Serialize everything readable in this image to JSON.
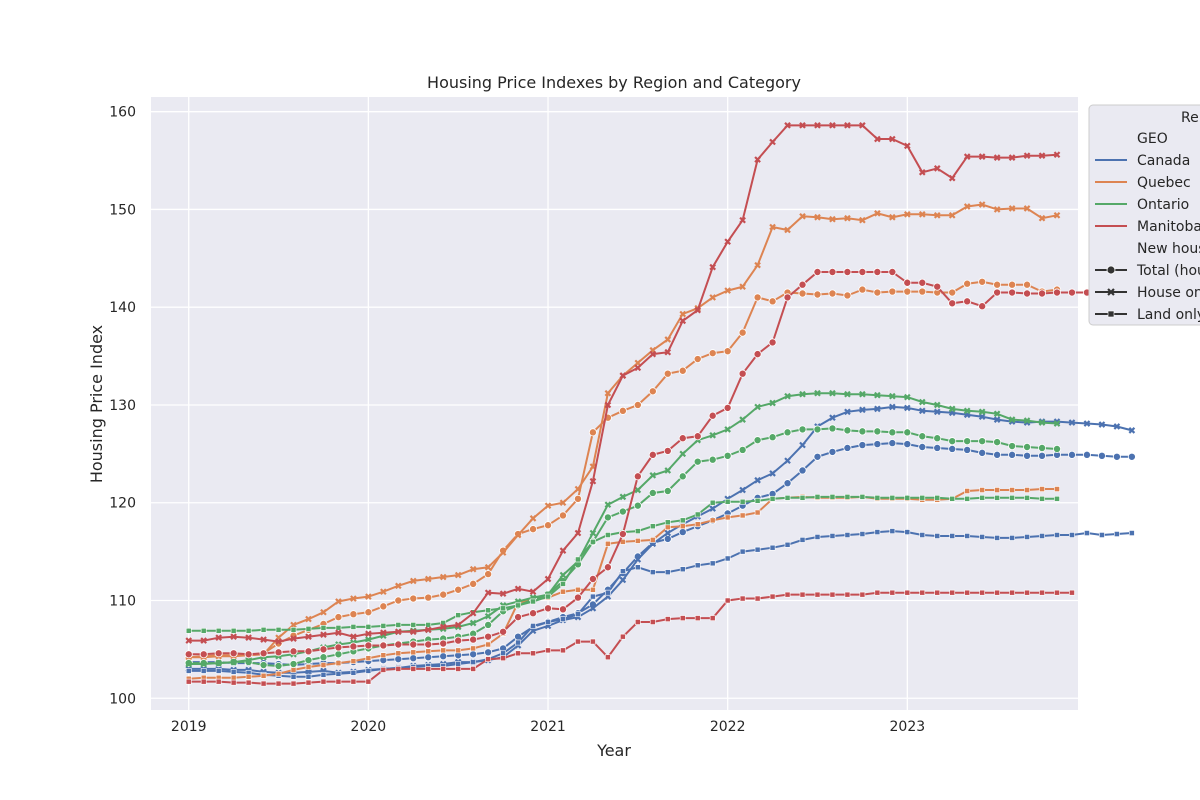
{
  "chart_data": {
    "type": "line",
    "title": "Housing Price Indexes by Region and Category",
    "xlabel": "Year",
    "ylabel": "Housing Price Index",
    "xlim": [
      2018.79,
      2023.95
    ],
    "ylim": [
      98.8,
      161.5
    ],
    "x_ticks": [
      2019,
      2020,
      2021,
      2022,
      2023
    ],
    "x_tick_labels": [
      "2019",
      "2020",
      "2021",
      "2022",
      "2023"
    ],
    "y_ticks": [
      100,
      110,
      120,
      130,
      140,
      150,
      160
    ],
    "y_tick_labels": [
      "100",
      "110",
      "120",
      "130",
      "140",
      "150",
      "160"
    ],
    "grid": true,
    "legend": {
      "position": "upper-right-outside",
      "title": "Re",
      "geo_header": "GEO",
      "type_header": "New hous",
      "geo_entries": [
        {
          "label": "Canada",
          "color": "#4c72b0"
        },
        {
          "label": "Quebec",
          "color": "#dd8452"
        },
        {
          "label": "Ontario",
          "color": "#55a868"
        },
        {
          "label": "Manitoba",
          "color": "#c44e52"
        }
      ],
      "type_entries": [
        {
          "label": "Total (hou",
          "marker": "circle"
        },
        {
          "label": "House on",
          "marker": "x"
        },
        {
          "label": "Land only",
          "marker": "square"
        }
      ]
    },
    "x_start": 2019.0,
    "x_step": 0.08333,
    "series": [
      {
        "geo": "Canada",
        "type": "Total",
        "color": "#4c72b0",
        "marker": "circle",
        "values": [
          103.7,
          103.7,
          103.7,
          103.6,
          103.6,
          103.6,
          103.5,
          103.4,
          103.5,
          103.6,
          103.6,
          103.7,
          103.8,
          103.9,
          104.0,
          104.1,
          104.2,
          104.3,
          104.4,
          104.5,
          104.7,
          105.1,
          106.3,
          107.3,
          107.8,
          108.3,
          108.7,
          109.6,
          111.1,
          112.8,
          114.5,
          115.9,
          116.3,
          117.0,
          117.6,
          118.2,
          118.9,
          119.7,
          120.5,
          120.9,
          122.0,
          123.3,
          124.7,
          125.2,
          125.6,
          125.9,
          126.0,
          126.1,
          126.0,
          125.7,
          125.6,
          125.5,
          125.4,
          125.1,
          124.9,
          124.9,
          124.8,
          124.8,
          124.9,
          124.9,
          124.9,
          124.8,
          124.7,
          124.7
        ]
      },
      {
        "geo": "Canada",
        "type": "House only",
        "color": "#4c72b0",
        "marker": "x",
        "values": [
          103.0,
          103.0,
          103.0,
          102.9,
          102.9,
          102.7,
          102.6,
          102.6,
          102.7,
          102.8,
          102.6,
          102.7,
          102.9,
          103.0,
          103.1,
          103.3,
          103.4,
          103.5,
          103.7,
          103.7,
          103.9,
          104.2,
          105.4,
          106.9,
          107.4,
          108.0,
          108.3,
          109.2,
          110.4,
          112.1,
          114.2,
          115.8,
          116.9,
          117.8,
          118.6,
          119.4,
          120.4,
          121.3,
          122.3,
          123.0,
          124.3,
          125.9,
          127.8,
          128.7,
          129.3,
          129.5,
          129.6,
          129.8,
          129.7,
          129.4,
          129.3,
          129.2,
          129.0,
          128.8,
          128.5,
          128.3,
          128.2,
          128.3,
          128.3,
          128.2,
          128.1,
          128.0,
          127.8,
          127.4
        ]
      },
      {
        "geo": "Canada",
        "type": "Land only",
        "color": "#4c72b0",
        "marker": "square",
        "values": [
          102.8,
          102.8,
          102.8,
          102.7,
          102.6,
          102.4,
          102.3,
          102.2,
          102.2,
          102.4,
          102.5,
          102.6,
          102.8,
          103.0,
          103.1,
          103.2,
          103.3,
          103.3,
          103.5,
          103.7,
          104.0,
          104.6,
          105.7,
          107.4,
          107.8,
          108.1,
          108.6,
          110.4,
          110.8,
          113.0,
          113.4,
          112.9,
          112.9,
          113.2,
          113.6,
          113.8,
          114.3,
          115.0,
          115.2,
          115.4,
          115.7,
          116.2,
          116.5,
          116.6,
          116.7,
          116.8,
          117.0,
          117.1,
          117.0,
          116.7,
          116.6,
          116.6,
          116.6,
          116.5,
          116.4,
          116.4,
          116.5,
          116.6,
          116.7,
          116.7,
          116.9,
          116.7,
          116.8,
          116.9
        ]
      },
      {
        "geo": "Quebec",
        "type": "Total",
        "color": "#dd8452",
        "marker": "circle",
        "values": [
          104.2,
          104.3,
          104.4,
          104.4,
          104.5,
          104.6,
          105.6,
          106.4,
          107.0,
          107.6,
          108.3,
          108.6,
          108.8,
          109.4,
          110.0,
          110.2,
          110.3,
          110.6,
          111.1,
          111.7,
          112.7,
          115.1,
          116.8,
          117.3,
          117.7,
          118.7,
          120.4,
          127.2,
          128.7,
          129.4,
          130.0,
          131.4,
          133.2,
          133.5,
          134.7,
          135.3,
          135.5,
          137.4,
          141.0,
          140.6,
          141.5,
          141.4,
          141.3,
          141.4,
          141.2,
          141.8,
          141.5,
          141.6,
          141.6,
          141.6,
          141.5,
          141.5,
          142.4,
          142.6,
          142.3,
          142.3,
          142.3,
          141.6,
          141.8
        ]
      },
      {
        "geo": "Quebec",
        "type": "House only",
        "color": "#dd8452",
        "marker": "x",
        "values": [
          104.2,
          104.2,
          104.3,
          104.3,
          104.4,
          104.5,
          106.2,
          107.5,
          108.1,
          108.8,
          109.9,
          110.2,
          110.4,
          110.9,
          111.5,
          112.0,
          112.2,
          112.4,
          112.6,
          113.2,
          113.4,
          114.9,
          116.7,
          118.4,
          119.7,
          120.0,
          121.4,
          123.7,
          131.2,
          133.0,
          134.3,
          135.6,
          136.7,
          139.3,
          139.9,
          141.0,
          141.7,
          142.1,
          144.3,
          148.2,
          147.9,
          149.3,
          149.2,
          149.0,
          149.1,
          148.9,
          149.6,
          149.2,
          149.5,
          149.5,
          149.4,
          149.4,
          150.3,
          150.5,
          150.0,
          150.1,
          150.1,
          149.1,
          149.4
        ]
      },
      {
        "geo": "Quebec",
        "type": "Land only",
        "color": "#dd8452",
        "marker": "square",
        "values": [
          102.0,
          102.1,
          102.1,
          102.1,
          102.2,
          102.3,
          102.5,
          102.9,
          103.2,
          103.4,
          103.6,
          103.8,
          104.1,
          104.4,
          104.6,
          104.7,
          104.8,
          104.9,
          104.9,
          105.1,
          105.5,
          106.6,
          109.8,
          110.1,
          110.3,
          110.9,
          111.1,
          111.1,
          115.8,
          116.0,
          116.1,
          116.2,
          117.5,
          117.6,
          117.8,
          118.2,
          118.5,
          118.7,
          119.0,
          120.4,
          120.5,
          120.6,
          120.5,
          120.5,
          120.5,
          120.6,
          120.4,
          120.4,
          120.4,
          120.3,
          120.3,
          120.4,
          121.2,
          121.3,
          121.3,
          121.3,
          121.3,
          121.4,
          121.4
        ]
      },
      {
        "geo": "Ontario",
        "type": "Total",
        "color": "#55a868",
        "marker": "circle",
        "values": [
          103.6,
          103.6,
          103.6,
          103.7,
          103.7,
          103.4,
          103.3,
          103.5,
          103.9,
          104.2,
          104.5,
          104.8,
          105.1,
          105.4,
          105.6,
          105.8,
          106.0,
          106.1,
          106.3,
          106.6,
          107.5,
          108.9,
          109.5,
          110.1,
          110.6,
          112.0,
          113.7,
          116.0,
          118.5,
          119.1,
          119.7,
          121.0,
          121.2,
          122.7,
          124.2,
          124.4,
          124.8,
          125.4,
          126.4,
          126.7,
          127.2,
          127.5,
          127.5,
          127.6,
          127.4,
          127.3,
          127.3,
          127.2,
          127.2,
          126.8,
          126.6,
          126.3,
          126.3,
          126.3,
          126.2,
          125.8,
          125.7,
          125.6,
          125.5
        ]
      },
      {
        "geo": "Ontario",
        "type": "House only",
        "color": "#55a868",
        "marker": "x",
        "values": [
          103.5,
          103.5,
          103.6,
          103.7,
          103.9,
          104.2,
          104.3,
          104.5,
          104.8,
          105.2,
          105.5,
          105.7,
          106.0,
          106.4,
          106.8,
          106.9,
          107.0,
          107.1,
          107.3,
          107.7,
          108.4,
          109.5,
          109.9,
          110.3,
          110.6,
          112.6,
          114.0,
          116.9,
          119.8,
          120.6,
          121.3,
          122.8,
          123.3,
          125.0,
          126.4,
          126.9,
          127.5,
          128.5,
          129.8,
          130.2,
          130.9,
          131.1,
          131.2,
          131.2,
          131.1,
          131.1,
          131.0,
          130.9,
          130.8,
          130.3,
          130.0,
          129.6,
          129.4,
          129.3,
          129.1,
          128.5,
          128.4,
          128.2,
          128.1
        ]
      },
      {
        "geo": "Ontario",
        "type": "Land only",
        "color": "#55a868",
        "marker": "square",
        "values": [
          106.9,
          106.9,
          106.9,
          106.9,
          106.9,
          107.0,
          107.0,
          107.0,
          107.1,
          107.2,
          107.2,
          107.3,
          107.3,
          107.4,
          107.5,
          107.5,
          107.5,
          107.7,
          108.5,
          108.8,
          109.0,
          109.2,
          109.5,
          109.9,
          110.4,
          111.7,
          114.2,
          116.0,
          116.7,
          117.0,
          117.1,
          117.6,
          118.0,
          118.2,
          118.8,
          120.0,
          120.1,
          120.1,
          120.2,
          120.4,
          120.5,
          120.5,
          120.6,
          120.6,
          120.6,
          120.6,
          120.5,
          120.5,
          120.5,
          120.5,
          120.5,
          120.4,
          120.4,
          120.5,
          120.5,
          120.5,
          120.5,
          120.4,
          120.4
        ]
      },
      {
        "geo": "Manitoba",
        "type": "Total",
        "color": "#c44e52",
        "marker": "circle",
        "values": [
          104.5,
          104.5,
          104.6,
          104.6,
          104.5,
          104.6,
          104.7,
          104.8,
          104.8,
          105.0,
          105.2,
          105.3,
          105.4,
          105.4,
          105.5,
          105.5,
          105.5,
          105.6,
          105.9,
          106.0,
          106.3,
          106.8,
          108.3,
          108.7,
          109.2,
          109.1,
          110.3,
          112.2,
          113.4,
          116.8,
          122.7,
          124.9,
          125.3,
          126.6,
          126.8,
          128.9,
          129.7,
          133.2,
          135.2,
          136.4,
          141.0,
          142.3,
          143.6,
          143.6,
          143.6,
          143.6,
          143.6,
          143.6,
          142.5,
          142.5,
          142.1,
          140.4,
          140.6,
          140.1,
          141.5,
          141.5,
          141.4,
          141.4,
          141.5,
          141.5,
          141.5
        ]
      },
      {
        "geo": "Manitoba",
        "type": "House only",
        "color": "#c44e52",
        "marker": "x",
        "values": [
          105.9,
          105.9,
          106.2,
          106.3,
          106.2,
          106.0,
          105.8,
          106.1,
          106.3,
          106.5,
          106.7,
          106.3,
          106.6,
          106.7,
          106.8,
          106.8,
          107.0,
          107.3,
          107.5,
          108.7,
          110.8,
          110.7,
          111.2,
          110.9,
          112.2,
          115.1,
          116.9,
          122.2,
          130.0,
          133.0,
          133.8,
          135.2,
          135.4,
          138.6,
          139.7,
          144.1,
          146.7,
          148.9,
          155.1,
          156.9,
          158.6,
          158.6,
          158.6,
          158.6,
          158.6,
          158.6,
          157.2,
          157.2,
          156.5,
          153.8,
          154.2,
          153.2,
          155.4,
          155.4,
          155.3,
          155.3,
          155.5,
          155.5,
          155.6
        ]
      },
      {
        "geo": "Manitoba",
        "type": "Land only",
        "color": "#c44e52",
        "marker": "square",
        "values": [
          101.7,
          101.7,
          101.7,
          101.6,
          101.6,
          101.5,
          101.5,
          101.5,
          101.6,
          101.7,
          101.7,
          101.7,
          101.7,
          102.9,
          103.0,
          103.0,
          103.0,
          103.0,
          103.0,
          103.0,
          104.0,
          104.1,
          104.6,
          104.6,
          104.9,
          104.9,
          105.8,
          105.8,
          104.2,
          106.3,
          107.8,
          107.8,
          108.1,
          108.2,
          108.2,
          108.2,
          110.0,
          110.2,
          110.2,
          110.4,
          110.6,
          110.6,
          110.6,
          110.6,
          110.6,
          110.6,
          110.8,
          110.8,
          110.8,
          110.8,
          110.8,
          110.8,
          110.8,
          110.8,
          110.8,
          110.8,
          110.8,
          110.8,
          110.8,
          110.8
        ]
      }
    ]
  }
}
